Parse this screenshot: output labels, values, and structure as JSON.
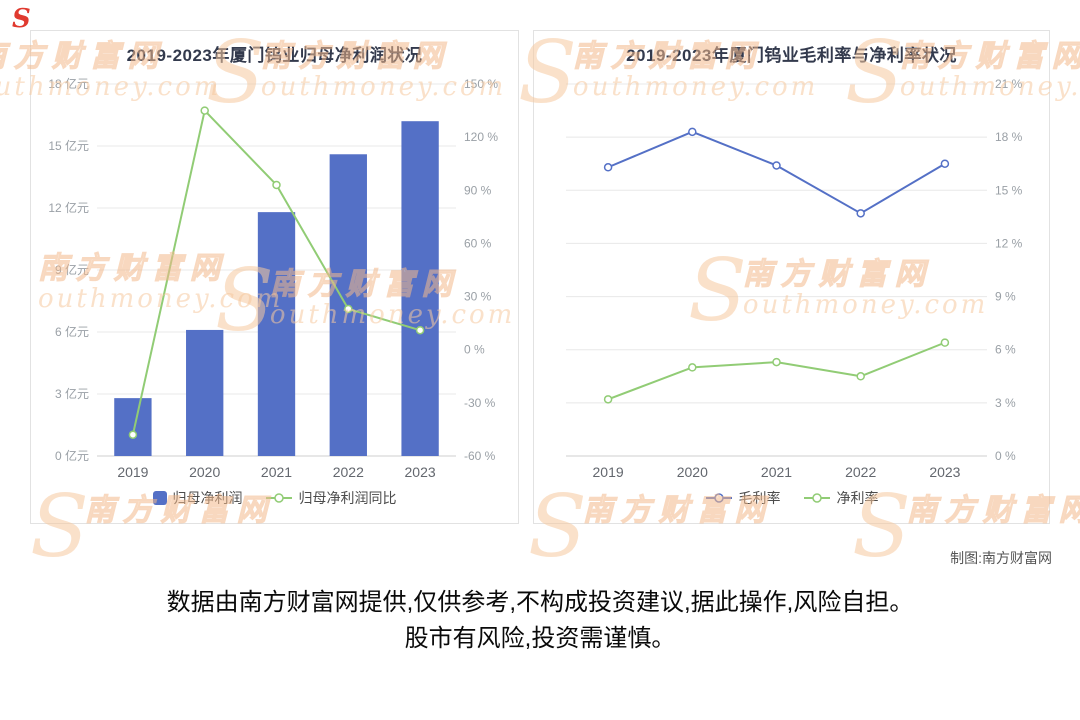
{
  "chart_data": [
    {
      "type": "bar+line",
      "title": "2019-2023年厦门钨业归母净利润状况",
      "categories": [
        "2019",
        "2020",
        "2021",
        "2022",
        "2023"
      ],
      "series": [
        {
          "name": "归母净利润",
          "type": "bar",
          "axis": "left",
          "color": "#5470c6",
          "unit": "亿元",
          "values": [
            2.8,
            6.1,
            11.8,
            14.6,
            16.2
          ]
        },
        {
          "name": "归母净利润同比",
          "type": "line",
          "axis": "right",
          "color": "#91cc75",
          "unit": "%",
          "values": [
            -48,
            135,
            93,
            23,
            11
          ]
        }
      ],
      "left_axis": {
        "min": 0,
        "max": 18,
        "step": 3,
        "suffix": " 亿元"
      },
      "right_axis": {
        "min": -60,
        "max": 150,
        "step": 30,
        "suffix": " %"
      },
      "grid": true,
      "legend_position": "bottom"
    },
    {
      "type": "line",
      "title": "2019-2023年厦门钨业毛利率与净利率状况",
      "categories": [
        "2019",
        "2020",
        "2021",
        "2022",
        "2023"
      ],
      "series": [
        {
          "name": "毛利率",
          "type": "line",
          "axis": "right",
          "color": "#5470c6",
          "unit": "%",
          "values": [
            16.3,
            18.3,
            16.4,
            13.7,
            16.5
          ]
        },
        {
          "name": "净利率",
          "type": "line",
          "axis": "right",
          "color": "#91cc75",
          "unit": "%",
          "values": [
            3.2,
            5,
            5.3,
            4.5,
            6.4
          ]
        }
      ],
      "right_axis": {
        "min": 0,
        "max": 21,
        "step": 3,
        "suffix": " %"
      },
      "grid": true,
      "legend_position": "bottom"
    }
  ],
  "footer": {
    "credit": "制图:南方财富网",
    "disclaimer_line1": "数据由南方财富网提供,仅供参考,不构成投资建议,据此操作,风险自担。",
    "disclaimer_line2": "股市有风险,投资需谨慎。"
  },
  "watermark": {
    "initial": "S",
    "cn": "南方财富网",
    "en": "outhmoney.com",
    "color": "#f6c9a0"
  }
}
